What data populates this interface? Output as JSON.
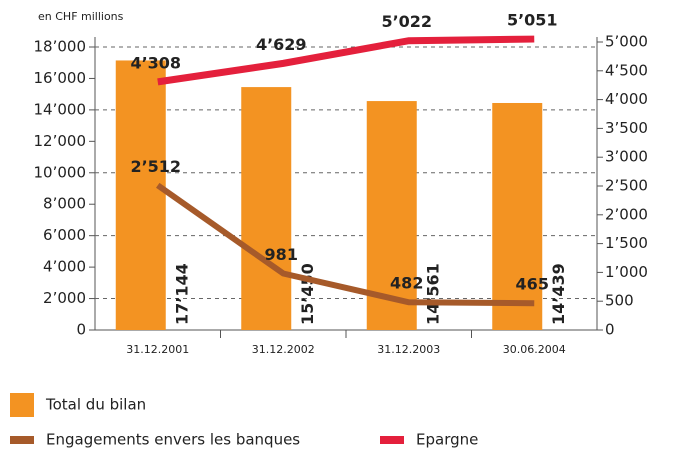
{
  "chart_data": {
    "type": "bar-line",
    "unit_label": "en CHF millions",
    "categories": [
      "31.12.2001",
      "31.12.2002",
      "31.12.2003",
      "30.06.2004"
    ],
    "series": [
      {
        "name": "Total du bilan",
        "color": "#f39322",
        "values": [
          17144,
          15450,
          14561,
          14439
        ],
        "value_labels": [
          "17’144",
          "15’450",
          "14’561",
          "14’439"
        ]
      },
      {
        "name": "Engagements envers les banques",
        "color": "#a65a2a",
        "axis": "y2",
        "values": [
          2512,
          981,
          482,
          465
        ],
        "value_labels": [
          "2’512",
          "981",
          "482",
          "465"
        ]
      },
      {
        "name": "Epargne",
        "color": "#e4203c",
        "axis": "y2",
        "values": [
          4308,
          4629,
          5022,
          5051
        ],
        "value_labels": [
          "4’308",
          "4’629",
          "5’022",
          "5’051"
        ]
      }
    ],
    "ylim": [
      0,
      18000
    ],
    "yticks": [
      0,
      {
        "value": 2000,
        "label": "2’000"
      },
      {
        "value": 4000,
        "label": "4’000"
      },
      {
        "value": 6000,
        "label": "6’000"
      },
      {
        "value": 8000,
        "label": "8’000"
      },
      {
        "value": 10000,
        "label": "10’000"
      },
      {
        "value": 12000,
        "label": "12’000"
      },
      {
        "value": 14000,
        "label": "14’000"
      },
      {
        "value": 16000,
        "label": "16’000"
      },
      {
        "value": 18000,
        "label": "18’000"
      }
    ],
    "y2lim": [
      0,
      5000
    ],
    "y2ticks": [
      0,
      500,
      {
        "value": 1000,
        "label": "1’000"
      },
      {
        "value": 1500,
        "label": "1’500"
      },
      {
        "value": 2000,
        "label": "2’000"
      },
      {
        "value": 2500,
        "label": "2’500"
      },
      {
        "value": 3000,
        "label": "3’000"
      },
      {
        "value": 3500,
        "label": "3’500"
      },
      {
        "value": 4000,
        "label": "4’000"
      },
      {
        "value": 4500,
        "label": "4’500"
      },
      {
        "value": 5000,
        "label": "5’000"
      }
    ],
    "grid": true
  }
}
